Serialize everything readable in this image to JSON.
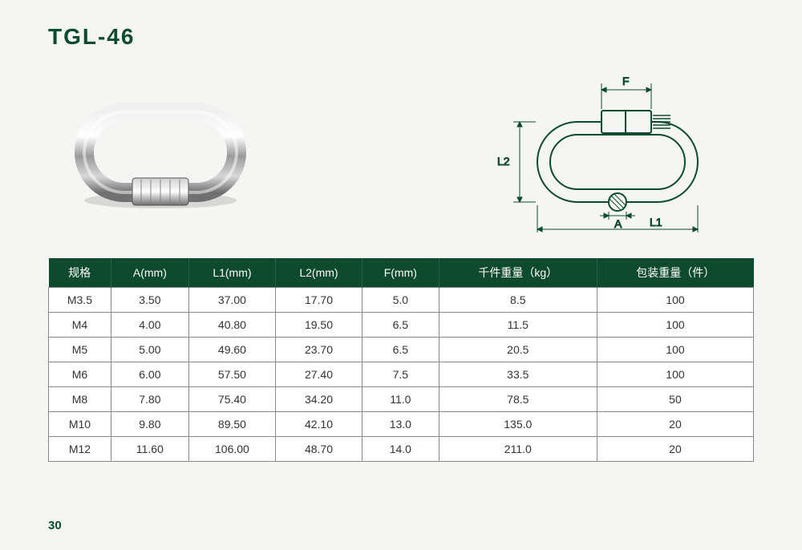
{
  "title": "TGL-46",
  "page_number": "30",
  "colors": {
    "brand_green": "#0d4a2e",
    "page_bg": "#f5f5f3",
    "table_border": "#888888",
    "table_cell_bg": "#ffffff",
    "diagram_stroke": "#0d4a2e"
  },
  "photo": {
    "description": "stainless steel quick link carabiner photograph"
  },
  "diagram": {
    "labels": {
      "F": "F",
      "L2": "L2",
      "A": "A",
      "L1": "L1"
    },
    "description": "dimensional line drawing of quick link with F width, L2 height, A wire diameter, L1 overall length"
  },
  "table": {
    "columns": [
      "规格",
      "A(mm)",
      "L1(mm)",
      "L2(mm)",
      "F(mm)",
      "千件重量（kg）",
      "包装重量（件）"
    ],
    "rows": [
      [
        "M3.5",
        "3.50",
        "37.00",
        "17.70",
        "5.0",
        "8.5",
        "100"
      ],
      [
        "M4",
        "4.00",
        "40.80",
        "19.50",
        "6.5",
        "11.5",
        "100"
      ],
      [
        "M5",
        "5.00",
        "49.60",
        "23.70",
        "6.5",
        "20.5",
        "100"
      ],
      [
        "M6",
        "6.00",
        "57.50",
        "27.40",
        "7.5",
        "33.5",
        "100"
      ],
      [
        "M8",
        "7.80",
        "75.40",
        "34.20",
        "11.0",
        "78.5",
        "50"
      ],
      [
        "M10",
        "9.80",
        "89.50",
        "42.10",
        "13.0",
        "135.0",
        "20"
      ],
      [
        "M12",
        "11.60",
        "106.00",
        "48.70",
        "14.0",
        "211.0",
        "20"
      ]
    ],
    "header_bg": "#0d4a2e",
    "header_fg": "#ffffff",
    "cell_fontsize": 14
  }
}
